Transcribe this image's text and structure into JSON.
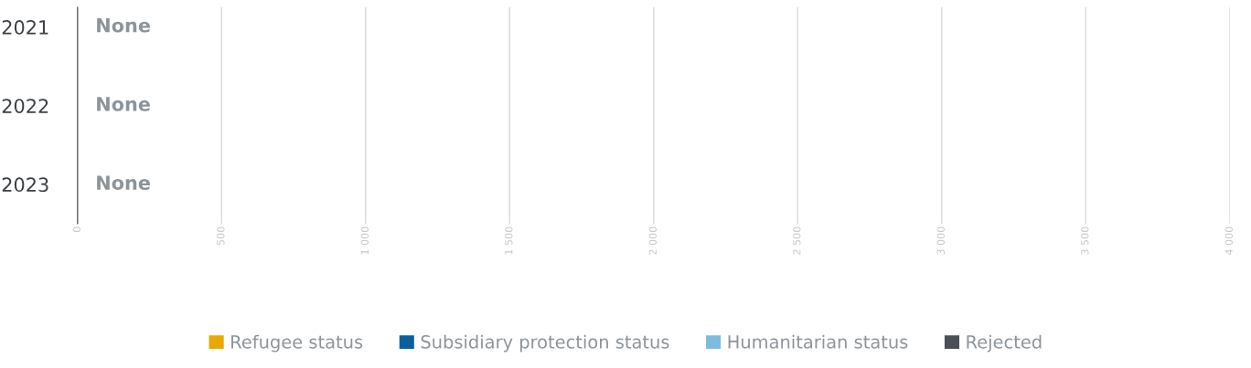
{
  "chart_data": {
    "type": "bar",
    "orientation": "horizontal",
    "categories": [
      "2021",
      "2022",
      "2023"
    ],
    "series": [
      {
        "name": "Refugee status",
        "color": "#e8a900",
        "values": [
          null,
          null,
          null
        ],
        "value_labels": [
          "None",
          "None",
          "None"
        ]
      },
      {
        "name": "Subsidiary protection status",
        "color": "#0a5f9e",
        "values": [
          null,
          null,
          null
        ]
      },
      {
        "name": "Humanitarian status",
        "color": "#7abde0",
        "values": [
          null,
          null,
          null
        ]
      },
      {
        "name": "Rejected",
        "color": "#4b4f56",
        "values": [
          null,
          null,
          null
        ]
      }
    ],
    "xlim": [
      0,
      4000
    ],
    "xticks": [
      0,
      500,
      {
        "value": 1000,
        "label": "1 000"
      },
      {
        "value": 1500,
        "label": "1 500"
      },
      {
        "value": 2000,
        "label": "2 000"
      },
      {
        "value": 2500,
        "label": "2 500"
      },
      {
        "value": 3000,
        "label": "3 000"
      },
      {
        "value": 3500,
        "label": "3 500"
      },
      {
        "value": 4000,
        "label": "4 000"
      }
    ],
    "grid": "x",
    "legend": "bottom"
  }
}
